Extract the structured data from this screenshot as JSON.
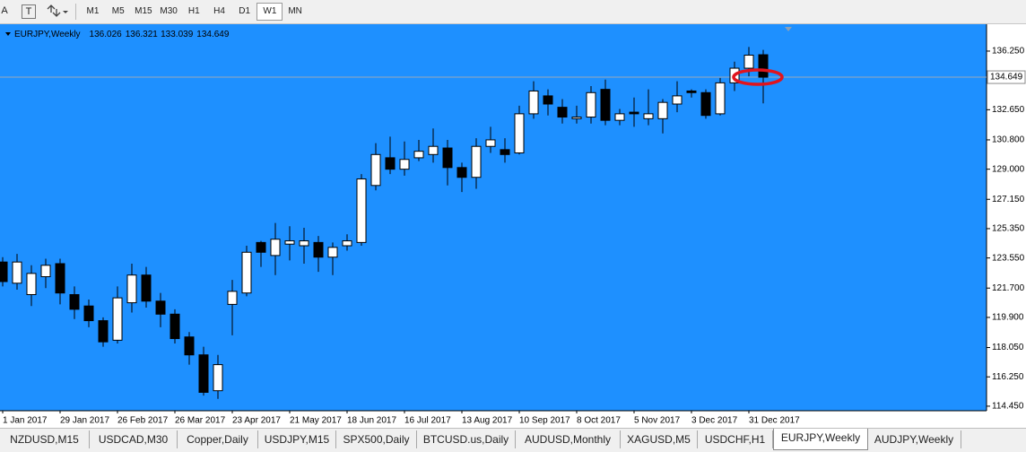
{
  "toolbar": {
    "tools": [
      "A",
      "T"
    ],
    "timeframes": [
      "M1",
      "M5",
      "M15",
      "M30",
      "H1",
      "H4",
      "D1",
      "W1",
      "MN"
    ],
    "active": "W1"
  },
  "chart_data": {
    "type": "candlestick",
    "title": "EURJPY,Weekly",
    "categories": [
      "1 Jan 2017",
      null,
      null,
      null,
      "29 Jan 2017",
      null,
      null,
      null,
      "26 Feb 2017",
      null,
      null,
      null,
      "26 Mar 2017",
      null,
      null,
      null,
      "23 Apr 2017",
      null,
      null,
      null,
      "21 May 2017",
      null,
      null,
      null,
      "18 Jun 2017",
      null,
      null,
      null,
      "16 Jul 2017",
      null,
      null,
      null,
      "13 Aug 2017",
      null,
      null,
      null,
      "10 Sep 2017",
      null,
      null,
      null,
      "8 Oct 2017",
      null,
      null,
      null,
      "5 Nov 2017",
      null,
      null,
      null,
      "3 Dec 2017",
      null,
      null,
      null,
      "31 Dec 2017",
      null
    ],
    "open": [
      123.3,
      122.0,
      121.3,
      122.4,
      123.2,
      121.3,
      120.6,
      119.7,
      118.5,
      120.8,
      122.5,
      120.9,
      120.1,
      118.7,
      117.6,
      115.4,
      120.7,
      121.4,
      124.5,
      123.7,
      124.4,
      124.3,
      124.5,
      123.6,
      124.3,
      124.5,
      128.0,
      129.7,
      129.0,
      129.7,
      129.9,
      130.3,
      129.1,
      128.5,
      130.4,
      130.2,
      130.0,
      132.4,
      133.5,
      132.8,
      132.1,
      132.2,
      133.9,
      132.0,
      132.5,
      132.1,
      132.1,
      133.0,
      133.8,
      133.7,
      132.4,
      134.3,
      135.2,
      136.026
    ],
    "high": [
      123.6,
      123.8,
      123.1,
      123.5,
      123.5,
      121.8,
      121.0,
      119.9,
      121.8,
      123.2,
      123.0,
      121.4,
      120.4,
      119.0,
      118.1,
      117.6,
      122.2,
      124.3,
      124.6,
      125.7,
      125.5,
      125.4,
      124.9,
      124.5,
      125.0,
      128.7,
      130.6,
      131.0,
      130.7,
      130.8,
      131.5,
      130.8,
      129.4,
      130.9,
      131.6,
      130.9,
      132.9,
      134.4,
      133.9,
      133.3,
      132.9,
      134.1,
      134.5,
      132.7,
      133.4,
      133.9,
      133.3,
      134.4,
      133.9,
      133.9,
      134.6,
      135.6,
      136.5,
      136.321
    ],
    "low": [
      121.8,
      121.6,
      120.6,
      121.7,
      120.7,
      119.8,
      119.3,
      118.1,
      118.3,
      120.2,
      120.5,
      119.3,
      118.3,
      117.0,
      115.1,
      114.9,
      118.8,
      121.2,
      123.0,
      122.5,
      123.4,
      123.2,
      122.7,
      122.5,
      124.0,
      124.3,
      127.7,
      128.7,
      128.6,
      129.5,
      129.4,
      128.0,
      127.6,
      127.8,
      130.0,
      129.4,
      129.9,
      132.1,
      132.3,
      131.8,
      131.8,
      131.8,
      131.7,
      131.7,
      131.6,
      131.7,
      131.2,
      132.5,
      133.4,
      132.1,
      132.3,
      133.8,
      134.7,
      133.039
    ],
    "close": [
      122.1,
      123.3,
      122.6,
      123.1,
      121.4,
      120.4,
      119.7,
      118.4,
      121.1,
      122.5,
      120.9,
      120.1,
      118.6,
      117.6,
      115.3,
      117.0,
      121.5,
      123.9,
      123.9,
      124.7,
      124.6,
      124.6,
      123.6,
      124.2,
      124.6,
      128.4,
      129.9,
      129.0,
      129.6,
      130.1,
      130.4,
      129.1,
      128.5,
      130.4,
      130.8,
      129.9,
      132.4,
      133.8,
      133.0,
      132.2,
      132.2,
      133.7,
      132.0,
      132.4,
      132.4,
      132.4,
      133.1,
      133.5,
      133.7,
      132.3,
      134.3,
      135.2,
      136.0,
      134.649
    ],
    "up_color": "#ffffff",
    "down_color": "#000000",
    "background": "#1e90ff",
    "price_line_color": "#9aa9b8",
    "ylim": [
      114.17,
      137.9
    ],
    "yticks": [
      {
        "value": 114.45,
        "label": "114.450"
      },
      {
        "value": 116.25,
        "label": "116.250"
      },
      {
        "value": 118.05,
        "label": "118.050"
      },
      {
        "value": 119.9,
        "label": "119.900"
      },
      {
        "value": 121.7,
        "label": "121.700"
      },
      {
        "value": 123.55,
        "label": "123.550"
      },
      {
        "value": 125.35,
        "label": "125.350"
      },
      {
        "value": 127.15,
        "label": "127.150"
      },
      {
        "value": 129.0,
        "label": "129.000"
      },
      {
        "value": 130.8,
        "label": "130.800"
      },
      {
        "value": 132.65,
        "label": "132.650"
      },
      {
        "value": 136.25,
        "label": "136.250"
      }
    ],
    "grid": false
  },
  "tabs": {
    "items": [
      "NZDUSD,M15",
      "USDCAD,M30",
      "Copper,Daily",
      "USDJPY,M15",
      "SPX500,Daily",
      "BTCUSD.us,Daily",
      "AUDUSD,Monthly",
      "XAGUSD,M5",
      "USDCHF,H1",
      "EURJPY,Weekly",
      "AUDJPY,Weekly"
    ],
    "active": "EURJPY,Weekly"
  }
}
